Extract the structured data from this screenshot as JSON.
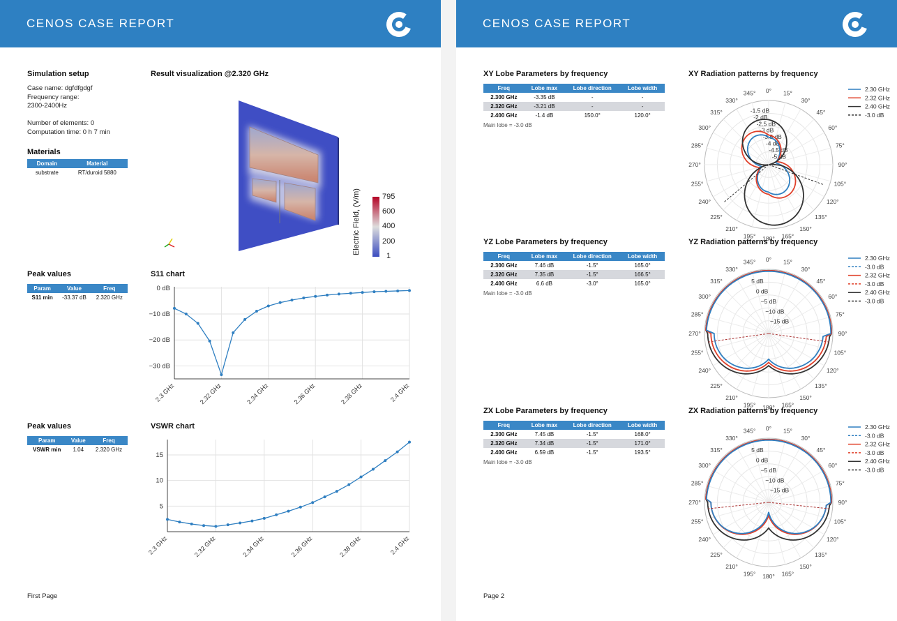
{
  "report_title": "CENOS CASE REPORT",
  "page1": {
    "setup": {
      "title": "Simulation setup",
      "case_name": "Case name: dgfdfgdgf",
      "freq_range_label": "Frequency range:",
      "freq_range_value": "2300-2400Hz",
      "elements": "Number of elements: 0",
      "comp_time": "Computation time: 0 h 7 min"
    },
    "materials": {
      "title": "Materials",
      "headers": [
        "Domain",
        "Material"
      ],
      "rows": [
        [
          "substrate",
          "RT/duroid 5880"
        ]
      ]
    },
    "viz": {
      "title": "Result visualization @2.320 GHz",
      "colorbar_label": "Electric Field, (V/m)",
      "colorbar_ticks": [
        "795",
        "600",
        "400",
        "200",
        "1"
      ]
    },
    "peak_s11": {
      "title": "Peak values",
      "headers": [
        "Param",
        "Value",
        "Freq"
      ],
      "row": [
        "S11 min",
        "-33.37 dB",
        "2.320 GHz"
      ]
    },
    "peak_vswr": {
      "title": "Peak values",
      "headers": [
        "Param",
        "Value",
        "Freq"
      ],
      "row": [
        "VSWR min",
        "1.04",
        "2.320 GHz"
      ]
    },
    "s11_title": "S11 chart",
    "vswr_title": "VSWR chart",
    "footer": "First Page"
  },
  "page2": {
    "footer": "Page 2",
    "lobe_headers": [
      "Freq",
      "Lobe max",
      "Lobe direction",
      "Lobe width"
    ],
    "xy": {
      "title": "XY Lobe Parameters by frequency",
      "rows": [
        [
          "2.300 GHz",
          "-3.35 dB",
          "-",
          "-"
        ],
        [
          "2.320 GHz",
          "-3.21 dB",
          "-",
          "-"
        ],
        [
          "2.400 GHz",
          "-1.4 dB",
          "150.0°",
          "120.0°"
        ]
      ],
      "note": "Main lobe = -3.0 dB",
      "radiation_title": "XY Radiation patterns by frequency",
      "legend": [
        "2.30 GHz",
        "2.32 GHz",
        "2.40 GHz",
        "-3.0 dB"
      ]
    },
    "yz": {
      "title": "YZ Lobe Parameters by frequency",
      "rows": [
        [
          "2.300 GHz",
          "7.46 dB",
          "-1.5°",
          "165.0°"
        ],
        [
          "2.320 GHz",
          "7.35 dB",
          "-1.5°",
          "166.5°"
        ],
        [
          "2.400 GHz",
          "6.6 dB",
          "-3.0°",
          "165.0°"
        ]
      ],
      "note": "Main lobe = -3.0 dB",
      "radiation_title": "YZ Radiation patterns by frequency",
      "legend": [
        "2.30 GHz",
        "-3.0 dB",
        "2.32 GHz",
        "-3.0 dB",
        "2.40 GHz",
        "-3.0 dB"
      ]
    },
    "zx": {
      "title": "ZX Lobe Parameters by frequency",
      "rows": [
        [
          "2.300 GHz",
          "7.45 dB",
          "-1.5°",
          "168.0°"
        ],
        [
          "2.320 GHz",
          "7.34 dB",
          "-1.5°",
          "171.0°"
        ],
        [
          "2.400 GHz",
          "6.59 dB",
          "-1.5°",
          "193.5°"
        ]
      ],
      "note": "Main lobe = -3.0 dB",
      "radiation_title": "ZX Radiation patterns by frequency",
      "legend": [
        "2.30 GHz",
        "-3.0 dB",
        "2.32 GHz",
        "-3.0 dB",
        "2.40 GHz",
        "-3.0 dB"
      ]
    },
    "angle_labels": [
      "0°",
      "15°",
      "30°",
      "45°",
      "60°",
      "75°",
      "90°",
      "105°",
      "120°",
      "135°",
      "150°",
      "165°",
      "180°",
      "195°",
      "210°",
      "225°",
      "240°",
      "255°",
      "270°",
      "285°",
      "300°",
      "315°",
      "330°",
      "345°"
    ],
    "xy_radial_ticks": [
      "-1.5 dB",
      "-2 dB",
      "-2.5 dB",
      "-3 dB",
      "-3.5 dB",
      "-4 dB",
      "-4.5 dB",
      "-5 dB"
    ],
    "yz_radial_ticks": [
      "5 dB",
      "0 dB",
      "−5 dB",
      "−10 dB",
      "−15 dB"
    ],
    "zx_radial_ticks": [
      "5 dB",
      "0 dB",
      "−5 dB",
      "−10 dB",
      "−15 dB"
    ]
  },
  "chart_data": [
    {
      "type": "line",
      "title": "S11 chart",
      "xlabel": "",
      "ylabel": "",
      "x": [
        2.3,
        2.305,
        2.31,
        2.315,
        2.32,
        2.325,
        2.33,
        2.335,
        2.34,
        2.345,
        2.35,
        2.355,
        2.36,
        2.365,
        2.37,
        2.375,
        2.38,
        2.385,
        2.39,
        2.395,
        2.4
      ],
      "series": [
        {
          "values": [
            -7.8,
            -10,
            -13.6,
            -20.4,
            -33.37,
            -17.2,
            -12.1,
            -8.9,
            -6.9,
            -5.6,
            -4.6,
            -3.8,
            -3.2,
            -2.7,
            -2.3,
            -2.0,
            -1.7,
            -1.4,
            -1.25,
            -1.1,
            -0.95
          ]
        }
      ],
      "xticks": [
        "2.3 GHz",
        "2.32 GHz",
        "2.34 GHz",
        "2.36 GHz",
        "2.38 GHz",
        "2.4 GHz"
      ],
      "yticks": [
        "0 dB",
        "−10 dB",
        "−20 dB",
        "−30 dB"
      ],
      "xlim": [
        2.3,
        2.4
      ],
      "ylim": [
        -35,
        0.5
      ],
      "grid": true
    },
    {
      "type": "line",
      "title": "VSWR chart",
      "xlabel": "",
      "ylabel": "",
      "x": [
        2.3,
        2.305,
        2.31,
        2.315,
        2.32,
        2.325,
        2.33,
        2.335,
        2.34,
        2.345,
        2.35,
        2.355,
        2.36,
        2.365,
        2.37,
        2.375,
        2.38,
        2.385,
        2.39,
        2.395,
        2.4
      ],
      "series": [
        {
          "values": [
            2.4,
            1.9,
            1.5,
            1.2,
            1.04,
            1.35,
            1.7,
            2.1,
            2.6,
            3.3,
            4.0,
            4.8,
            5.7,
            6.8,
            7.9,
            9.2,
            10.7,
            12.2,
            13.9,
            15.6,
            17.5
          ]
        }
      ],
      "xticks": [
        "2.3 GHz",
        "2.32 GHz",
        "2.34 GHz",
        "2.36 GHz",
        "2.38 GHz",
        "2.4 GHz"
      ],
      "yticks": [
        "15",
        "10",
        "5"
      ],
      "xlim": [
        2.3,
        2.4
      ],
      "ylim": [
        0,
        18
      ],
      "grid": true
    }
  ]
}
